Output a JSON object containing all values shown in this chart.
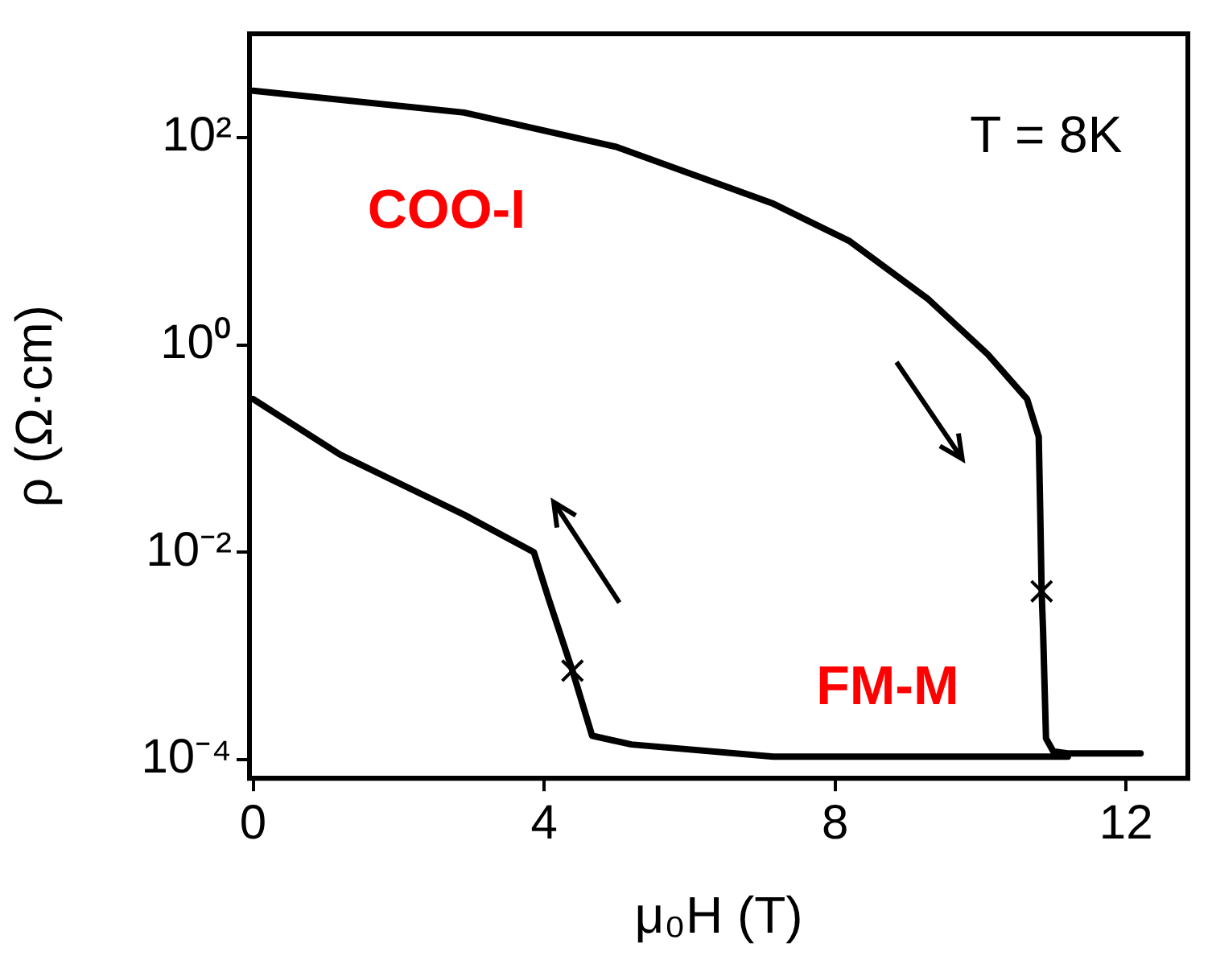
{
  "chart_data": {
    "type": "line",
    "xlabel": "μ₀H (T)",
    "ylabel": "ρ (Ω·cm)",
    "annotations": [
      "T = 8K",
      "COO-I",
      "FM-M"
    ],
    "series": [
      {
        "color": "#000000",
        "x": [
          0,
          2.9,
          5.0,
          7.15,
          8.2,
          9.27,
          10.1,
          10.64,
          10.8,
          10.82,
          10.84,
          10.86,
          10.9,
          11.0,
          11.2,
          12.2
        ],
        "values": [
          282,
          174,
          81,
          23,
          10,
          2.8,
          0.81,
          0.3,
          0.13,
          0.026,
          0.0042,
          0.0017,
          0.00016,
          0.00012,
          0.000115,
          0.000115
        ]
      },
      {
        "color": "#000000",
        "x": [
          0,
          1.2,
          2.9,
          3.86,
          4.06,
          4.39,
          4.66,
          5.2,
          7.15,
          11.2
        ],
        "values": [
          0.3,
          0.087,
          0.023,
          0.01,
          0.0036,
          0.00072,
          0.00017,
          0.00014,
          0.000107,
          0.000107
        ]
      },
      {
        "type": "scatter",
        "marker": "cross",
        "color": "#000000",
        "x": [
          4.39,
          10.84
        ],
        "values": [
          0.00072,
          0.0042
        ]
      }
    ],
    "xlim": [
      -0.05,
      12.85
    ],
    "xticks": [
      0,
      4,
      8,
      12
    ],
    "ylim": [
      6.6e-05,
      1000
    ],
    "yticks": [
      {
        "value": 100,
        "label": "10²"
      },
      {
        "value": 1,
        "label": "10⁰"
      },
      {
        "value": 0.01,
        "label": "10⁻²"
      },
      {
        "value": 0.0001,
        "label": "10⁻⁴"
      }
    ],
    "log": "y",
    "grid": false,
    "legend": false
  }
}
